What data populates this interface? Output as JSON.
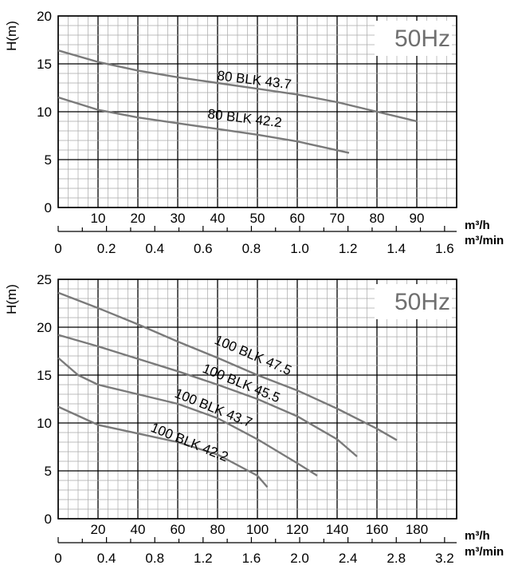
{
  "chart_data": [
    {
      "type": "line",
      "title": "",
      "badge": "50Hz",
      "ylabel": "H(m)",
      "xlabel": "m³/h",
      "x2label": "m³/min",
      "xlim": [
        0,
        100
      ],
      "ylim": [
        0,
        20
      ],
      "y_ticks": [
        0,
        5,
        10,
        15,
        20
      ],
      "x_ticks": [
        10,
        20,
        30,
        40,
        50,
        60,
        70,
        80,
        90
      ],
      "x2_ticks": [
        "0",
        "0.2",
        "0.4",
        "0.6",
        "0.8",
        "1.0",
        "1.2",
        "1.4",
        "1.6"
      ],
      "grid": true,
      "series": [
        {
          "name": "80 BLK 43.7",
          "x": [
            0,
            10,
            20,
            30,
            40,
            50,
            60,
            70,
            80,
            90
          ],
          "y": [
            16.4,
            15.2,
            14.3,
            13.6,
            13.0,
            12.4,
            11.8,
            11.0,
            10.0,
            9.0
          ]
        },
        {
          "name": "80 BLK 42.2",
          "x": [
            0,
            10,
            20,
            30,
            40,
            50,
            60,
            73
          ],
          "y": [
            11.5,
            10.2,
            9.4,
            8.8,
            8.2,
            7.6,
            6.9,
            5.7
          ]
        }
      ]
    },
    {
      "type": "line",
      "title": "",
      "badge": "50Hz",
      "ylabel": "H(m)",
      "xlabel": "m³/h",
      "x2label": "m³/min",
      "xlim": [
        0,
        200
      ],
      "ylim": [
        0,
        25
      ],
      "y_ticks": [
        0,
        5,
        10,
        15,
        20,
        25
      ],
      "x_ticks": [
        20,
        40,
        60,
        80,
        100,
        120,
        140,
        160,
        180
      ],
      "x2_ticks": [
        "0",
        "0.4",
        "0.8",
        "1.2",
        "1.6",
        "2.0",
        "2.4",
        "2.8",
        "3.2"
      ],
      "grid": true,
      "series": [
        {
          "name": "100 BLK 47.5",
          "x": [
            0,
            20,
            40,
            60,
            80,
            100,
            120,
            140,
            160,
            170
          ],
          "y": [
            23.6,
            22.0,
            20.3,
            18.5,
            16.8,
            15.0,
            13.4,
            11.5,
            9.4,
            8.2
          ]
        },
        {
          "name": "100 BLK 45.5",
          "x": [
            0,
            20,
            40,
            60,
            80,
            100,
            120,
            140,
            150
          ],
          "y": [
            19.2,
            18.0,
            16.7,
            15.4,
            14.0,
            12.5,
            10.7,
            8.3,
            6.5
          ]
        },
        {
          "name": "100 BLK 43.7",
          "x": [
            0,
            10,
            20,
            40,
            60,
            80,
            100,
            120,
            130
          ],
          "y": [
            16.8,
            15.0,
            14.0,
            13.0,
            12.0,
            10.5,
            8.3,
            5.8,
            4.5
          ]
        },
        {
          "name": "100 BLK 42.2",
          "x": [
            0,
            20,
            40,
            60,
            80,
            100,
            105
          ],
          "y": [
            11.7,
            9.8,
            8.9,
            8.0,
            6.7,
            4.5,
            3.3
          ]
        }
      ]
    }
  ]
}
